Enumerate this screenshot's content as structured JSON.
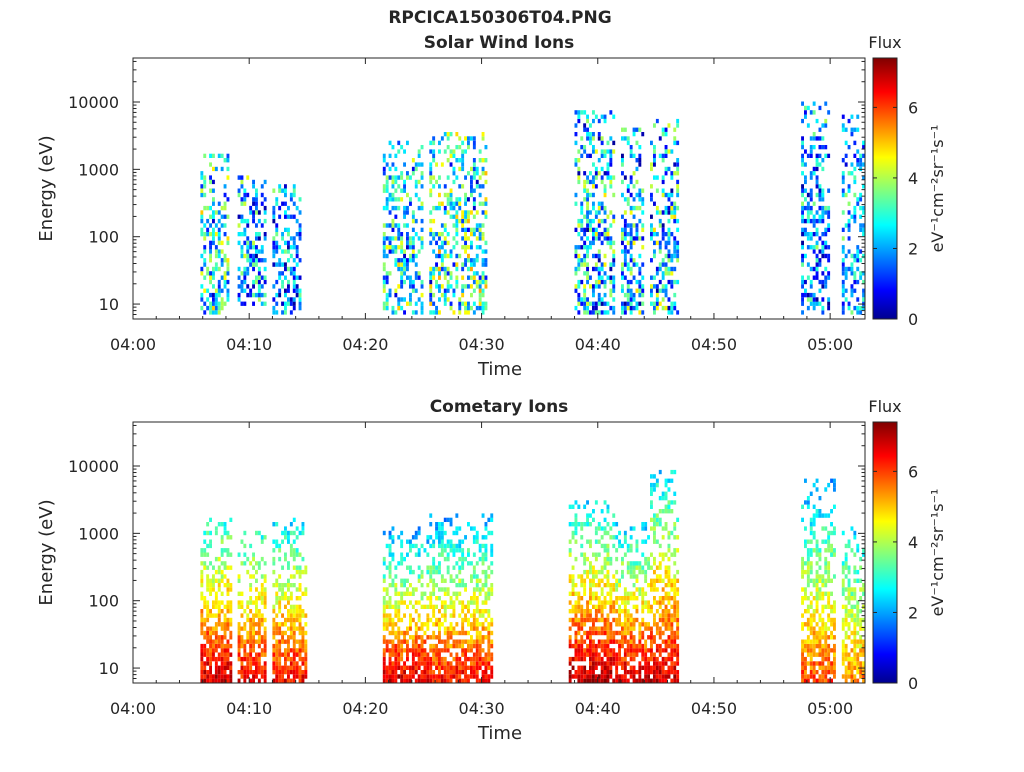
{
  "figure": {
    "title": "RPCICA150306T04.PNG"
  },
  "chart_data": [
    {
      "type": "heatmap",
      "title": "Solar Wind Ions",
      "xlabel": "Time",
      "ylabel": "Energy (eV)",
      "x_ticks": [
        "04:00",
        "04:10",
        "04:20",
        "04:30",
        "04:40",
        "04:50",
        "05:00"
      ],
      "x_range_minutes": [
        0,
        63
      ],
      "y_scale": "log",
      "y_ticks": [
        "10",
        "100",
        "1000",
        "10000"
      ],
      "y_range": [
        6,
        45000
      ],
      "colorbar": {
        "title": "Flux",
        "label": "eV⁻¹cm⁻²sr⁻¹s⁻¹",
        "ticks": [
          "0",
          "2",
          "4",
          "6"
        ],
        "range": [
          0,
          7.4
        ],
        "colormap": "jet"
      },
      "activity_bursts": [
        {
          "start_min": 5.8,
          "end_min": 8.2,
          "e_min": 8,
          "e_max": 1600,
          "flux": [
            1,
            4.5
          ]
        },
        {
          "start_min": 9.0,
          "end_min": 11.5,
          "e_min": 10,
          "e_max": 700,
          "flux": [
            0.5,
            4
          ]
        },
        {
          "start_min": 12.0,
          "end_min": 14.5,
          "e_min": 8,
          "e_max": 600,
          "flux": [
            0.5,
            3.5
          ]
        },
        {
          "start_min": 21.5,
          "end_min": 25.0,
          "e_min": 8,
          "e_max": 2500,
          "flux": [
            1,
            4.5
          ]
        },
        {
          "start_min": 25.5,
          "end_min": 30.5,
          "e_min": 8,
          "e_max": 3500,
          "flux": [
            1,
            5
          ]
        },
        {
          "start_min": 38.0,
          "end_min": 41.5,
          "e_min": 7,
          "e_max": 7000,
          "flux": [
            0.5,
            4.5
          ]
        },
        {
          "start_min": 42.0,
          "end_min": 44.0,
          "e_min": 7,
          "e_max": 4000,
          "flux": [
            0.5,
            4.5
          ]
        },
        {
          "start_min": 44.5,
          "end_min": 47.0,
          "e_min": 7,
          "e_max": 5000,
          "flux": [
            0.5,
            4.5
          ]
        },
        {
          "start_min": 57.5,
          "end_min": 60.0,
          "e_min": 7,
          "e_max": 9000,
          "flux": [
            0.5,
            3.5
          ]
        },
        {
          "start_min": 61.0,
          "end_min": 63.0,
          "e_min": 7,
          "e_max": 6000,
          "flux": [
            1,
            3.5
          ]
        }
      ]
    },
    {
      "type": "heatmap",
      "title": "Cometary Ions",
      "xlabel": "Time",
      "ylabel": "Energy (eV)",
      "x_ticks": [
        "04:00",
        "04:10",
        "04:20",
        "04:30",
        "04:40",
        "04:50",
        "05:00"
      ],
      "x_range_minutes": [
        0,
        63
      ],
      "y_scale": "log",
      "y_ticks": [
        "10",
        "100",
        "1000",
        "10000"
      ],
      "y_range": [
        6,
        45000
      ],
      "colorbar": {
        "title": "Flux",
        "label": "eV⁻¹cm⁻²sr⁻¹s⁻¹",
        "ticks": [
          "0",
          "2",
          "4",
          "6"
        ],
        "range": [
          0,
          7.4
        ],
        "colormap": "jet"
      },
      "activity_bursts": [
        {
          "start_min": 5.8,
          "end_min": 8.5,
          "e_min": 6,
          "e_max": 1500,
          "flux": [
            3,
            6.8
          ]
        },
        {
          "start_min": 9.0,
          "end_min": 11.5,
          "e_min": 6,
          "e_max": 1000,
          "flux": [
            3,
            6.5
          ]
        },
        {
          "start_min": 12.0,
          "end_min": 15.0,
          "e_min": 6,
          "e_max": 1700,
          "flux": [
            2.5,
            6.5
          ]
        },
        {
          "start_min": 21.5,
          "end_min": 25.5,
          "e_min": 6,
          "e_max": 1200,
          "flux": [
            2,
            6.8
          ]
        },
        {
          "start_min": 25.5,
          "end_min": 30.8,
          "e_min": 6,
          "e_max": 1800,
          "flux": [
            2,
            6.5
          ]
        },
        {
          "start_min": 37.5,
          "end_min": 41.5,
          "e_min": 6,
          "e_max": 3000,
          "flux": [
            2.5,
            7
          ]
        },
        {
          "start_min": 41.5,
          "end_min": 44.5,
          "e_min": 6,
          "e_max": 1300,
          "flux": [
            2.5,
            6.8
          ]
        },
        {
          "start_min": 44.5,
          "end_min": 47.0,
          "e_min": 6,
          "e_max": 8000,
          "flux": [
            2.5,
            6.8
          ]
        },
        {
          "start_min": 57.5,
          "end_min": 60.5,
          "e_min": 6,
          "e_max": 6500,
          "flux": [
            2,
            6
          ]
        },
        {
          "start_min": 61.0,
          "end_min": 63.0,
          "e_min": 6,
          "e_max": 1200,
          "flux": [
            2.5,
            5.5
          ]
        }
      ]
    }
  ]
}
